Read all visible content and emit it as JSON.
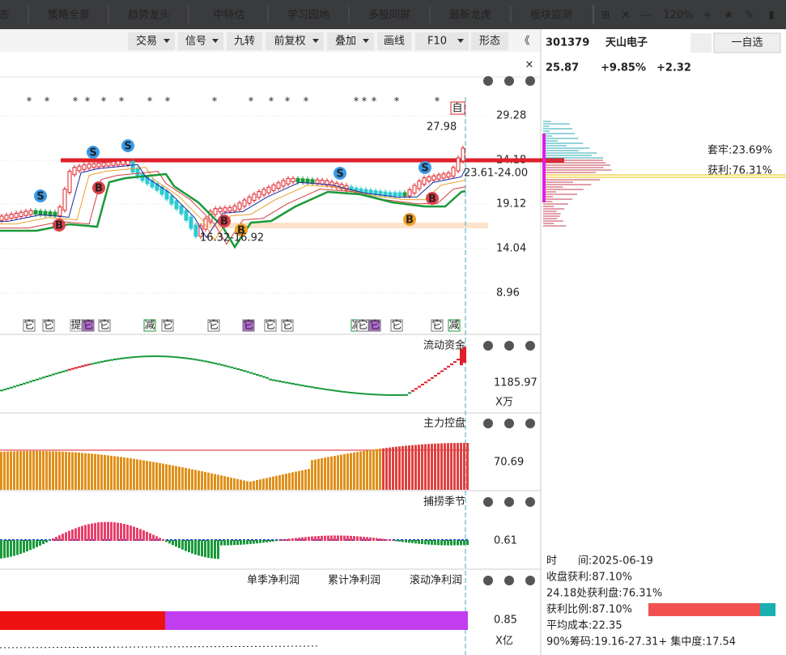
{
  "nav_tabs": [
    "态",
    "策略全景",
    "趋势龙头",
    "中特估",
    "学习园地",
    "多股同屏",
    "最新龙虎",
    "板块监测"
  ],
  "zoom": "120%",
  "toolbar": [
    "交易",
    "信号",
    "九转",
    "前复权",
    "叠加",
    "画线",
    "F10",
    "形态"
  ],
  "stock": {
    "code": "301379",
    "name": "天山电子",
    "watch_button": "一自选",
    "price": "25.87",
    "change_pct": "+9.85%",
    "change": "+2.32"
  },
  "chips": {
    "trapped": "套牢:23.69%",
    "profit": "获利:76.31%"
  },
  "price_axis": [
    "29.28",
    "24.18",
    "19.12",
    "14.04",
    "8.96"
  ],
  "annotations": {
    "high": "27.98",
    "resistance": "23.61-24.00",
    "support": "16.32-16.92",
    "self_tag": "自"
  },
  "signals": [
    "S",
    "S",
    "S",
    "S",
    "S",
    "B",
    "B",
    "B",
    "B",
    "B",
    "B"
  ],
  "event_tags": [
    "它",
    "它",
    "提",
    "它",
    "它",
    "减",
    "它",
    "它",
    "它",
    "它",
    "它",
    "减",
    "它",
    "它",
    "它",
    "它",
    "减"
  ],
  "panels": [
    {
      "title": "流动资金",
      "value": "1185.97",
      "unit": "X万"
    },
    {
      "title": "主力控盘",
      "value": "70.69"
    },
    {
      "title": "捕捞季节",
      "value": "0.61"
    },
    {
      "value": "0.85",
      "unit": "X亿"
    }
  ],
  "profit_tabs": [
    "单季净利润",
    "累计净利润",
    "滚动净利润"
  ],
  "info": [
    "时　　间:2025-06-19",
    "收盘获利:87.10%",
    "24.18处获利盘:76.31%",
    "获利比例:87.10%",
    "平均成本:22.35",
    "90%筹码:19.16-27.31+ 集中度:17.54"
  ]
}
